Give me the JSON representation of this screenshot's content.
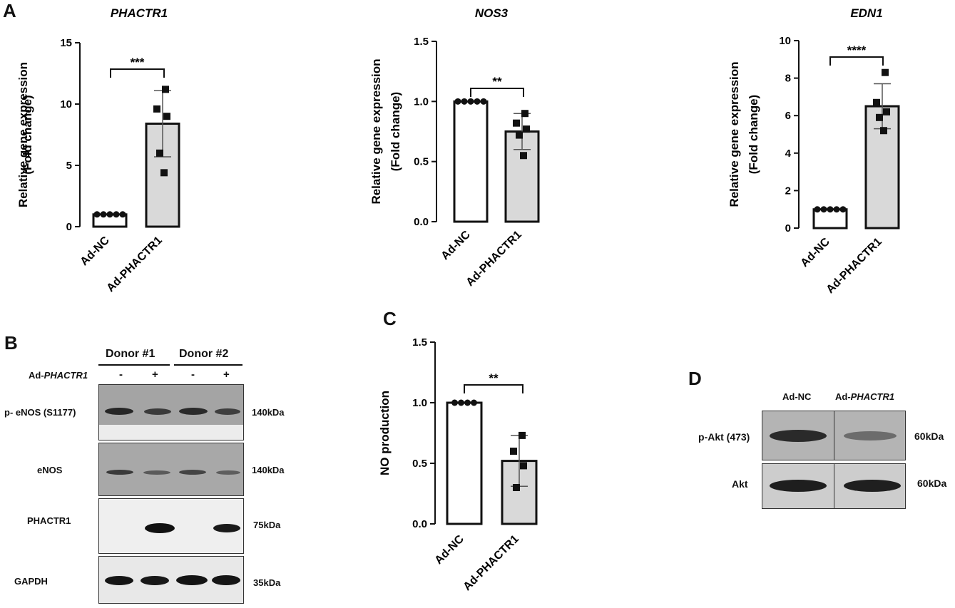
{
  "panels": {
    "A": "A",
    "B": "B",
    "C": "C",
    "D": "D"
  },
  "chart_data": [
    {
      "panel": "A",
      "type": "bar",
      "title": "PHACTR1",
      "ylabel_line1": "Relative gene expression",
      "ylabel_line2": "(Fold change)",
      "categories": [
        "Ad-NC",
        "Ad-PHACTR1"
      ],
      "values": [
        1.0,
        8.4
      ],
      "errors": [
        0.0,
        2.7
      ],
      "points": [
        [
          1,
          1,
          1,
          1,
          1
        ],
        [
          11.2,
          9.6,
          9.0,
          6.0,
          4.4
        ]
      ],
      "ylim": [
        0,
        15
      ],
      "yticks": [
        "0",
        "5",
        "10",
        "15"
      ],
      "significance": "***",
      "colors": [
        "#ffffff",
        "#d9d9d9"
      ]
    },
    {
      "panel": "A",
      "type": "bar",
      "title": "NOS3",
      "ylabel_line1": "Relative gene expression",
      "ylabel_line2": "(Fold change)",
      "categories": [
        "Ad-NC",
        "Ad-PHACTR1"
      ],
      "values": [
        1.0,
        0.75
      ],
      "errors": [
        0.0,
        0.15
      ],
      "points": [
        [
          1,
          1,
          1,
          1,
          1
        ],
        [
          0.9,
          0.82,
          0.77,
          0.72,
          0.55
        ]
      ],
      "ylim": [
        0,
        1.5
      ],
      "yticks": [
        "0.0",
        "0.5",
        "1.0",
        "1.5"
      ],
      "significance": "**",
      "colors": [
        "#ffffff",
        "#d9d9d9"
      ]
    },
    {
      "panel": "A",
      "type": "bar",
      "title": "EDN1",
      "ylabel_line1": "Relative gene expression",
      "ylabel_line2": "(Fold change)",
      "categories": [
        "Ad-NC",
        "Ad-PHACTR1"
      ],
      "values": [
        1.0,
        6.5
      ],
      "errors": [
        0.0,
        1.2
      ],
      "points": [
        [
          1,
          1,
          1,
          1,
          1
        ],
        [
          8.3,
          6.7,
          6.2,
          5.9,
          5.2
        ]
      ],
      "ylim": [
        0,
        10
      ],
      "yticks": [
        "0",
        "2",
        "4",
        "6",
        "8",
        "10"
      ],
      "significance": "****",
      "colors": [
        "#ffffff",
        "#d9d9d9"
      ]
    },
    {
      "panel": "C",
      "type": "bar",
      "title": "",
      "ylabel_line1": "NO production",
      "ylabel_line2": "",
      "categories": [
        "Ad-NC",
        "Ad-PHACTR1"
      ],
      "values": [
        1.0,
        0.52
      ],
      "errors": [
        0.0,
        0.21
      ],
      "points": [
        [
          1,
          1,
          1,
          1
        ],
        [
          0.73,
          0.6,
          0.48,
          0.3
        ]
      ],
      "ylim": [
        0,
        1.5
      ],
      "yticks": [
        "0.0",
        "0.5",
        "1.0",
        "1.5"
      ],
      "significance": "**",
      "colors": [
        "#ffffff",
        "#d9d9d9"
      ]
    }
  ],
  "blot_b": {
    "donor1": "Donor #1",
    "donor2": "Donor #2",
    "treatment_prefix": "Ad-",
    "treatment_gene": "PHACTR1",
    "lanes": [
      "-",
      "+",
      "-",
      "+"
    ],
    "rows": [
      {
        "label": "p- eNOS (S1177)",
        "kda": "140kDa"
      },
      {
        "label": "eNOS",
        "kda": "140kDa"
      },
      {
        "label": "PHACTR1",
        "kda": "75kDa"
      },
      {
        "label": "GAPDH",
        "kda": "35kDa"
      }
    ]
  },
  "blot_d": {
    "col1": "Ad-NC",
    "col2_prefix": "Ad-",
    "col2_gene": "PHACTR1",
    "rows": [
      {
        "label": "p-Akt (473)",
        "kda": "60kDa"
      },
      {
        "label": "Akt",
        "kda": "60kDa"
      }
    ]
  }
}
